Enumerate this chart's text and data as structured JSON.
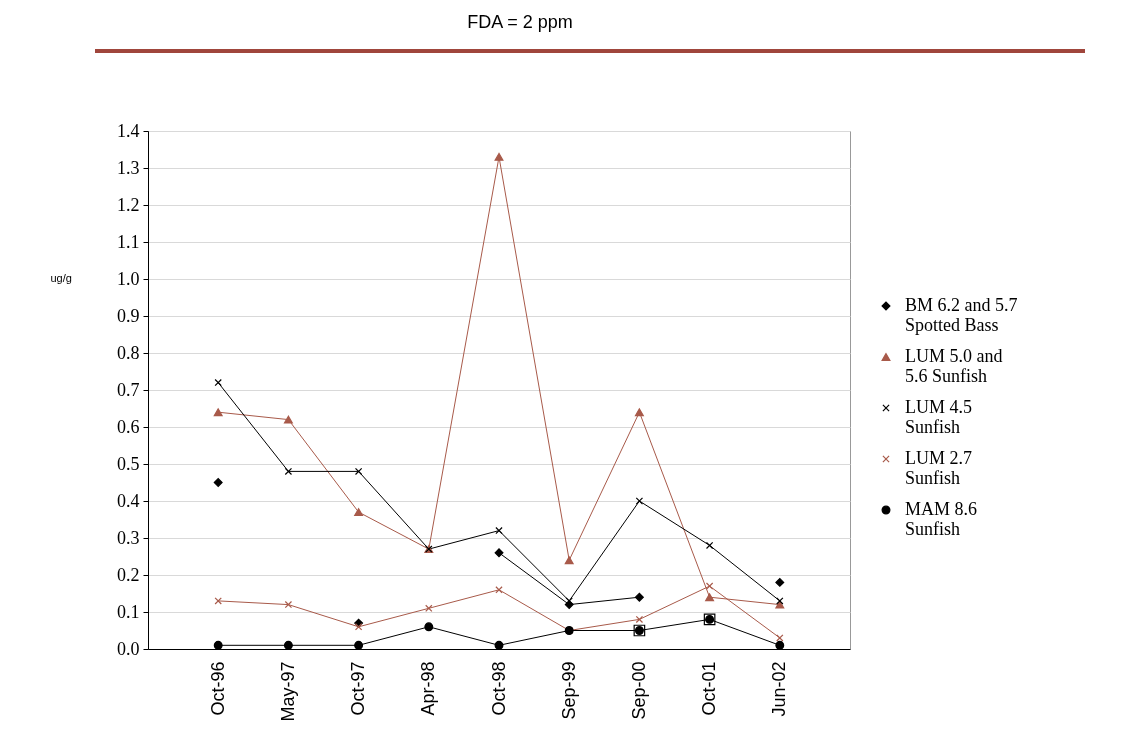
{
  "chart_data": {
    "type": "line",
    "title": "FDA = 2 ppm",
    "ylabel": "ug/g",
    "categories": [
      "Oct-96",
      "May-97",
      "Oct-97",
      "Apr-98",
      "Oct-98",
      "Sep-99",
      "Sep-00",
      "Oct-01",
      "Jun-02"
    ],
    "series": [
      {
        "name": "BM 6.2 and 5.7 Spotted Bass",
        "color": "#000000",
        "marker": "diamond",
        "values": [
          0.45,
          null,
          0.07,
          null,
          0.26,
          0.12,
          0.14,
          null,
          0.18
        ]
      },
      {
        "name": "LUM 5.0 and 5.6 Sunfish",
        "color": "#a85a4a",
        "marker": "triangle",
        "values": [
          0.64,
          0.62,
          0.37,
          0.27,
          1.33,
          0.24,
          0.64,
          0.14,
          0.12
        ]
      },
      {
        "name": "LUM 4.5 Sunfish",
        "color": "#000000",
        "marker": "cross",
        "values": [
          0.72,
          0.48,
          0.48,
          0.27,
          0.32,
          0.13,
          0.4,
          0.28,
          0.13
        ]
      },
      {
        "name": "LUM 2.7 Sunfish",
        "color": "#a85a4a",
        "marker": "cross",
        "values": [
          0.13,
          0.12,
          0.06,
          0.11,
          0.16,
          0.05,
          0.08,
          0.17,
          0.03
        ]
      },
      {
        "name": "MAM 8.6 Sunfish",
        "color": "#000000",
        "marker": "circle",
        "values": [
          0.01,
          0.01,
          0.01,
          0.06,
          0.01,
          0.05,
          0.05,
          0.08,
          0.01
        ]
      },
      {
        "type": "scatter",
        "color": "#000000",
        "values": [
          null,
          null,
          null,
          null,
          null,
          null,
          0.05,
          0.08,
          null
        ]
      }
    ],
    "ylim": [
      0,
      1.4
    ],
    "yticks": [
      {
        "value": 0,
        "label": "0.0"
      },
      0.1,
      0.2,
      0.3,
      0.4,
      0.5,
      0.6,
      0.7,
      0.8,
      0.9,
      {
        "value": 1,
        "label": "1.0"
      },
      1.1,
      1.2,
      1.3,
      1.4
    ],
    "grid": "y",
    "legend": "right"
  }
}
